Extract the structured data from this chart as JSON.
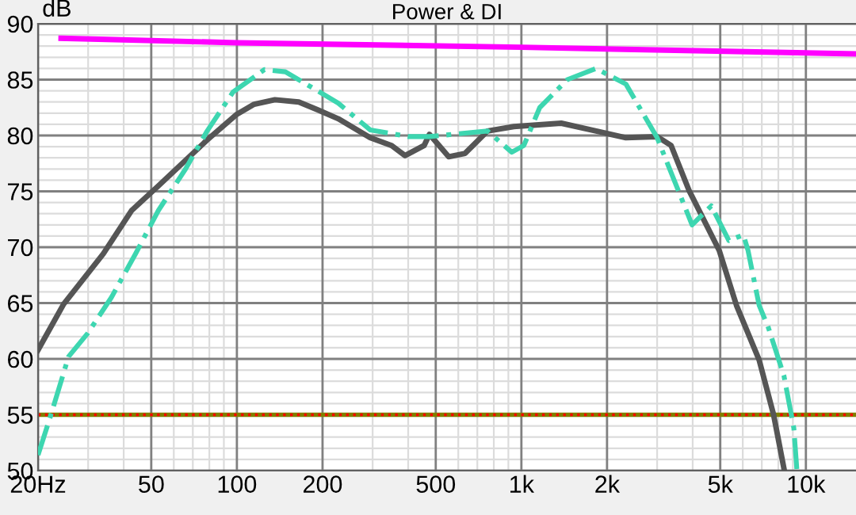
{
  "chart_data": {
    "type": "line",
    "title": "Power & DI",
    "ylabel": "dB",
    "log": "x",
    "grid": true,
    "xlim": [
      20,
      15000
    ],
    "ylim": [
      50,
      90
    ],
    "xticks": [
      {
        "value": 20,
        "label": "20Hz"
      },
      50,
      100,
      200,
      500,
      {
        "value": 1000,
        "label": "1k"
      },
      {
        "value": 2000,
        "label": "2k"
      },
      {
        "value": 5000,
        "label": "5k"
      },
      {
        "value": 10000,
        "label": "10k"
      }
    ],
    "yticks": [
      50,
      55,
      60,
      65,
      70,
      75,
      80,
      85,
      90
    ],
    "series": [
      {
        "color": "#ff00ff",
        "line_style": "solid",
        "x": [
          24.1,
          100,
          1000,
          15000
        ],
        "values": [
          88.7,
          88.3,
          87.9,
          87.3
        ]
      },
      {
        "color": "#555555",
        "line_style": "solid",
        "x": [
          20,
          24.6,
          33.9,
          42.7,
          53,
          78.6,
          92,
          100,
          115,
          136,
          165,
          192,
          227,
          294,
          350,
          390,
          455,
          475,
          555,
          634,
          760,
          940,
          1380,
          2330,
          3000,
          3360,
          3880,
          4960,
          5700,
          6850,
          7700,
          8400
        ],
        "values": [
          60.8,
          64.9,
          69.4,
          73.3,
          75.5,
          79.6,
          81.1,
          81.9,
          82.8,
          83.2,
          83.0,
          82.3,
          81.5,
          79.8,
          79.1,
          78.2,
          79.1,
          80.1,
          78.1,
          78.4,
          80.4,
          80.8,
          81.1,
          79.8,
          79.9,
          79.1,
          75.1,
          69.7,
          64.8,
          59.9,
          55.0,
          50.0
        ]
      },
      {
        "color": "#3dd6b0",
        "line_style": "dashdot",
        "x": [
          20,
          22.2,
          25.6,
          29.9,
          36.2,
          44,
          53,
          66,
          78.6,
          97,
          125,
          148,
          192,
          227,
          294,
          400,
          475,
          760,
          925,
          1020,
          1160,
          1450,
          1830,
          2330,
          3000,
          3980,
          4650,
          5360,
          6030,
          6260,
          6850,
          7380,
          8370,
          9070,
          9300
        ],
        "values": [
          51.4,
          55,
          60.2,
          62.3,
          65.5,
          69.4,
          73.3,
          77,
          80.4,
          83.9,
          85.9,
          85.7,
          84,
          82.9,
          80.5,
          79.9,
          79.9,
          80.4,
          78.5,
          79.1,
          82.5,
          85.0,
          86.0,
          84.6,
          79.8,
          72.0,
          73.7,
          70.6,
          71.1,
          69.7,
          64.8,
          62.8,
          58.5,
          53.8,
          50
        ]
      }
    ],
    "ref_lines": [
      {
        "axis": "y",
        "value": 55,
        "color": "#808000",
        "line_style": "solid"
      },
      {
        "axis": "y",
        "value": 55,
        "color": "#ff0000",
        "line_style": "dotted"
      }
    ]
  }
}
